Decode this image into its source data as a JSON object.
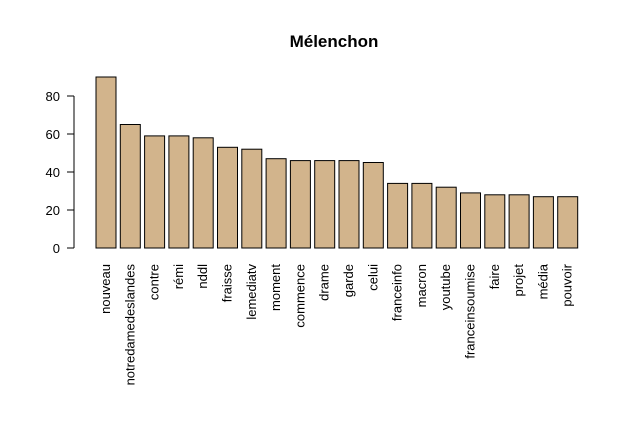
{
  "chart_data": {
    "type": "bar",
    "title": "Mélenchon",
    "xlabel": "",
    "ylabel": "",
    "categories": [
      "nouveau",
      "notredamedeslandes",
      "contre",
      "rémi",
      "nddl",
      "fraisse",
      "lemediatv",
      "moment",
      "commence",
      "drame",
      "garde",
      "celui",
      "franceinfo",
      "macron",
      "youtube",
      "franceinsoumise",
      "faire",
      "projet",
      "média",
      "pouvoir"
    ],
    "values": [
      90,
      65,
      59,
      59,
      58,
      53,
      52,
      47,
      46,
      46,
      46,
      45,
      34,
      34,
      32,
      29,
      28,
      28,
      27,
      27
    ],
    "ylim": [
      0,
      90
    ],
    "yticks": [
      0,
      20,
      40,
      60,
      80
    ],
    "bar_color": "#D2B48C",
    "grid": false,
    "legend": "none"
  }
}
